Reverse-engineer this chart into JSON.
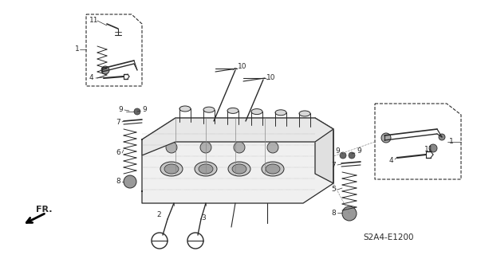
{
  "bg_color": "#ffffff",
  "line_color": "#2a2a2a",
  "diagram_code": "S2A4-E1200",
  "figsize": [
    5.98,
    3.2
  ],
  "dpi": 100
}
